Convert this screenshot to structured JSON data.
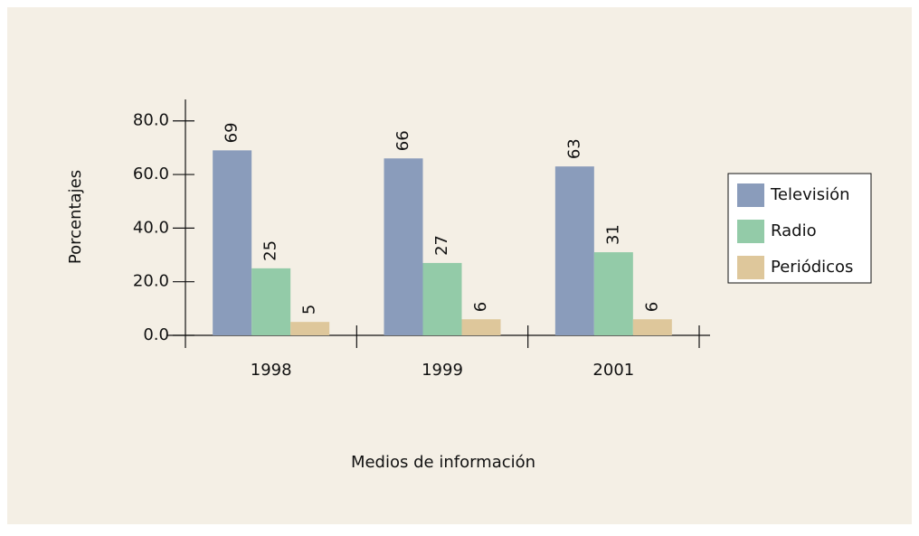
{
  "chart_data": {
    "type": "bar",
    "x_label": "Medios de información",
    "y_label": "Porcentajes",
    "categories": [
      "1998",
      "1999",
      "2001"
    ],
    "series": [
      {
        "name": "Televisión",
        "color": "#8a9cbb",
        "values": [
          69,
          66,
          63
        ]
      },
      {
        "name": "Radio",
        "color": "#93cba8",
        "values": [
          25,
          27,
          31
        ]
      },
      {
        "name": "Periódicos",
        "color": "#dec79b",
        "values": [
          5,
          6,
          6
        ]
      }
    ],
    "ylim": [
      0,
      88
    ],
    "yticks": [
      {
        "value": 0,
        "label": "0.0"
      },
      {
        "value": 20,
        "label": "20.0"
      },
      {
        "value": 40,
        "label": "40.0"
      },
      {
        "value": 60,
        "label": "60.0"
      },
      {
        "value": 80,
        "label": "80.0"
      }
    ],
    "legend": "right"
  }
}
